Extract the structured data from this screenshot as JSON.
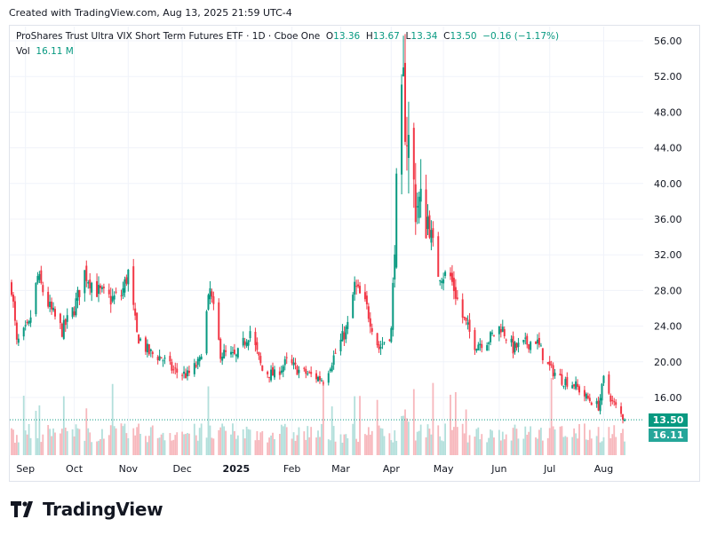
{
  "header": {
    "created": "Created with TradingView.com, Aug 13, 2025 21:59 UTC-4"
  },
  "legend": {
    "symbol": "ProShares Trust Ultra VIX Short Term Futures ETF · 1D · Cboe One",
    "open_label": "O",
    "open": "13.36",
    "high_label": "H",
    "high": "13.67",
    "low_label": "L",
    "low": "13.34",
    "close_label": "C",
    "close": "13.50",
    "change": "−0.16 (−1.17%)",
    "vol_label": "Vol",
    "vol": "16.11 M"
  },
  "badges": {
    "last_price": "13.50",
    "last_volume": "16.11 M"
  },
  "footer": {
    "brand": "TradingView"
  },
  "colors": {
    "up": "#089981",
    "down": "#f23645",
    "up_vol": "#b2dfdb",
    "down_vol": "#f7b7bc",
    "grid": "#f0f3fa"
  },
  "chart_data": {
    "type": "candlestick",
    "y_ticks": [
      "16.00",
      "20.00",
      "24.00",
      "28.00",
      "32.00",
      "36.00",
      "40.00",
      "44.00",
      "48.00",
      "52.00",
      "56.00"
    ],
    "x_ticks": [
      "Sep",
      "Oct",
      "Nov",
      "Dec",
      "2025",
      "Feb",
      "Mar",
      "Apr",
      "May",
      "Jun",
      "Jul",
      "Aug"
    ],
    "ylim": [
      11.5,
      57.5
    ],
    "approx_close_path": [
      {
        "date": "2024-08-26",
        "close": 28.5
      },
      {
        "date": "2024-08-29",
        "close": 22.0
      },
      {
        "date": "2024-09-05",
        "close": 24.0
      },
      {
        "date": "2024-09-10",
        "close": 29.5
      },
      {
        "date": "2024-09-17",
        "close": 26.0
      },
      {
        "date": "2024-09-24",
        "close": 23.5
      },
      {
        "date": "2024-10-01",
        "close": 26.0
      },
      {
        "date": "2024-10-07",
        "close": 30.0
      },
      {
        "date": "2024-10-14",
        "close": 28.0
      },
      {
        "date": "2024-10-22",
        "close": 27.0
      },
      {
        "date": "2024-10-28",
        "close": 27.5
      },
      {
        "date": "2024-11-01",
        "close": 30.0
      },
      {
        "date": "2024-11-06",
        "close": 23.0
      },
      {
        "date": "2024-11-13",
        "close": 21.0
      },
      {
        "date": "2024-11-20",
        "close": 20.5
      },
      {
        "date": "2024-11-27",
        "close": 19.0
      },
      {
        "date": "2024-12-05",
        "close": 18.5
      },
      {
        "date": "2024-12-12",
        "close": 20.0
      },
      {
        "date": "2024-12-18",
        "close": 28.0
      },
      {
        "date": "2024-12-24",
        "close": 21.0
      },
      {
        "date": "2025-01-02",
        "close": 20.5
      },
      {
        "date": "2025-01-10",
        "close": 23.5
      },
      {
        "date": "2025-01-17",
        "close": 19.0
      },
      {
        "date": "2025-01-24",
        "close": 18.5
      },
      {
        "date": "2025-01-31",
        "close": 20.0
      },
      {
        "date": "2025-02-07",
        "close": 19.0
      },
      {
        "date": "2025-02-14",
        "close": 18.5
      },
      {
        "date": "2025-02-21",
        "close": 18.0
      },
      {
        "date": "2025-02-28",
        "close": 21.0
      },
      {
        "date": "2025-03-07",
        "close": 24.0
      },
      {
        "date": "2025-03-11",
        "close": 28.5
      },
      {
        "date": "2025-03-18",
        "close": 26.0
      },
      {
        "date": "2025-03-25",
        "close": 21.5
      },
      {
        "date": "2025-04-01",
        "close": 23.5
      },
      {
        "date": "2025-04-04",
        "close": 38.0
      },
      {
        "date": "2025-04-08",
        "close": 50.0
      },
      {
        "date": "2025-04-10",
        "close": 46.0
      },
      {
        "date": "2025-04-15",
        "close": 38.0
      },
      {
        "date": "2025-04-22",
        "close": 36.0
      },
      {
        "date": "2025-04-28",
        "close": 30.0
      },
      {
        "date": "2025-05-05",
        "close": 29.5
      },
      {
        "date": "2025-05-12",
        "close": 25.0
      },
      {
        "date": "2025-05-19",
        "close": 22.0
      },
      {
        "date": "2025-05-27",
        "close": 22.5
      },
      {
        "date": "2025-06-03",
        "close": 24.0
      },
      {
        "date": "2025-06-10",
        "close": 21.5
      },
      {
        "date": "2025-06-17",
        "close": 22.0
      },
      {
        "date": "2025-06-23",
        "close": 22.5
      },
      {
        "date": "2025-06-30",
        "close": 19.5
      },
      {
        "date": "2025-07-08",
        "close": 18.0
      },
      {
        "date": "2025-07-15",
        "close": 17.5
      },
      {
        "date": "2025-07-22",
        "close": 16.0
      },
      {
        "date": "2025-07-29",
        "close": 15.0
      },
      {
        "date": "2025-08-01",
        "close": 18.0
      },
      {
        "date": "2025-08-06",
        "close": 15.5
      },
      {
        "date": "2025-08-13",
        "close": 13.5
      }
    ],
    "last_close": 13.5,
    "last_volume": "16.11M"
  }
}
